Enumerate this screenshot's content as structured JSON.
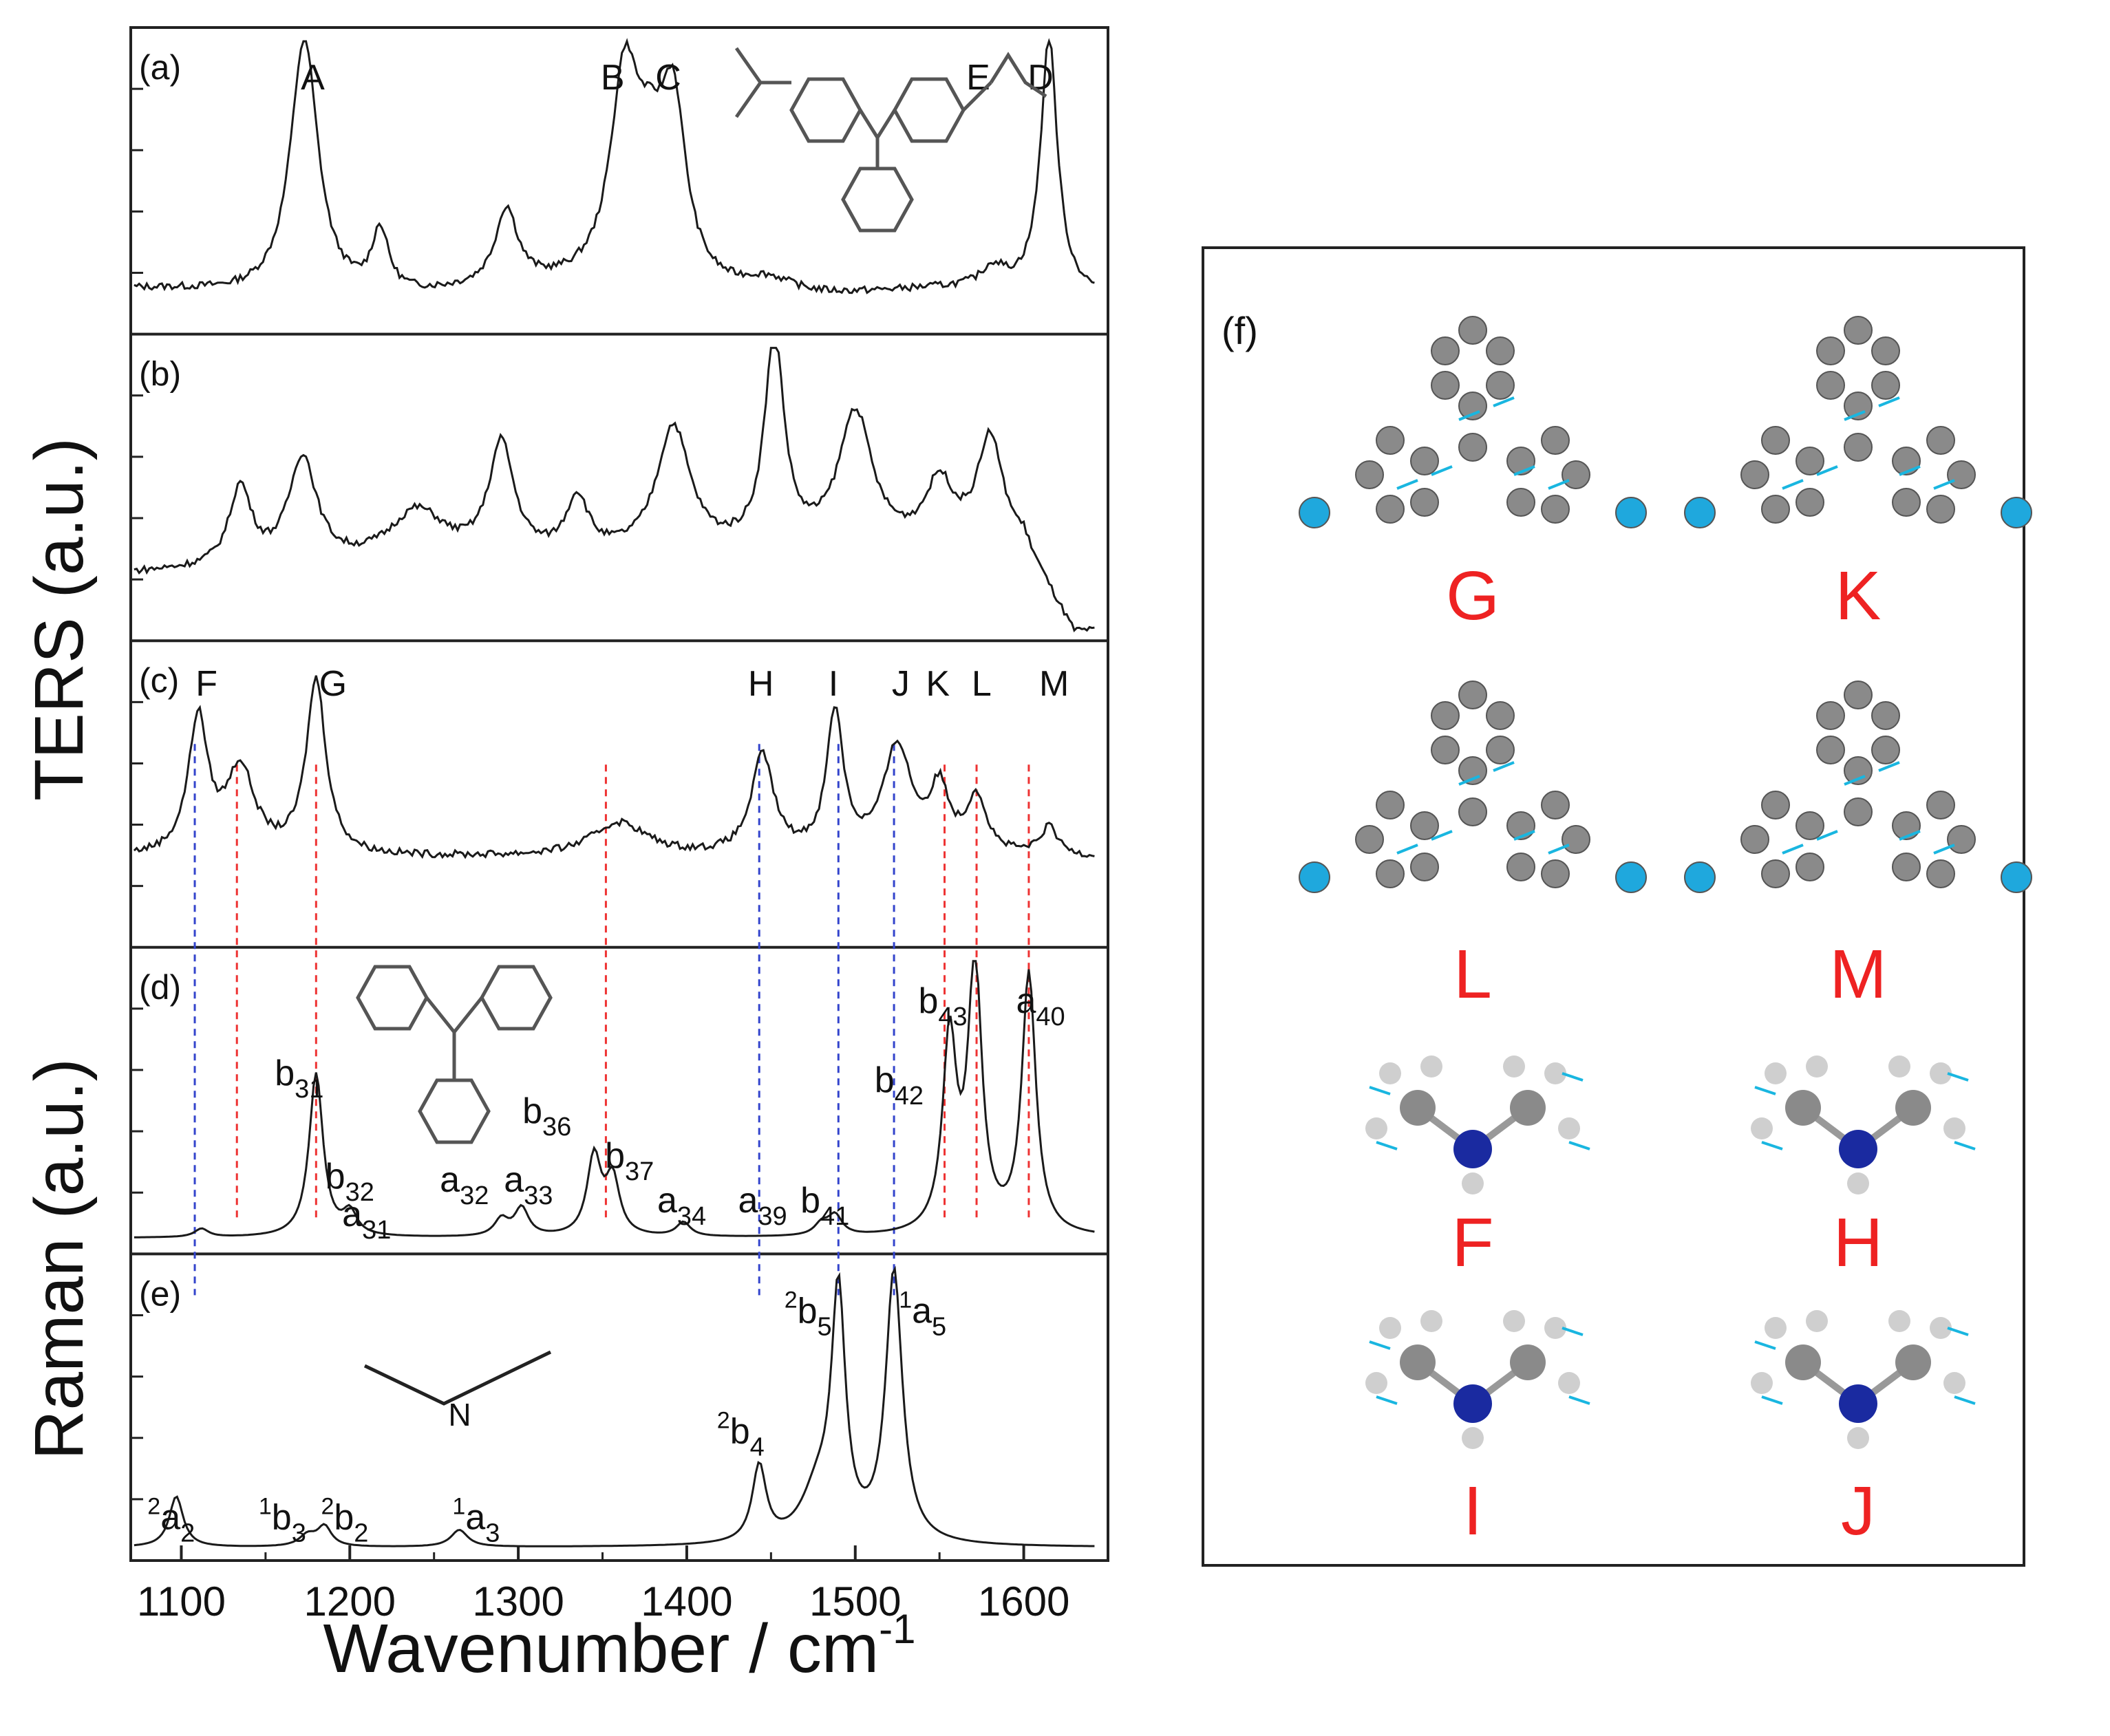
{
  "chart_data": {
    "type": "line",
    "x_label": "Wavenumber / cm",
    "x_label_superscript": "-1",
    "y_label_top": "TERS (a.u.)",
    "y_label_bottom": "Raman (a.u.)",
    "x_range": [
      1070,
      1650
    ],
    "x_ticks": [
      "1100",
      "1200",
      "1300",
      "1400",
      "1500",
      "1600"
    ],
    "panels": [
      {
        "id": "a",
        "label": "(a)",
        "baseline": 0.1,
        "peaks": [
          [
            1173,
            0.92,
            10
          ],
          [
            1218,
            0.22,
            6
          ],
          [
            1293,
            0.27,
            8
          ],
          [
            1363,
            0.68,
            10
          ],
          [
            1378,
            0.35,
            12
          ],
          [
            1392,
            0.58,
            9
          ],
          [
            1448,
            0.06,
            20
          ],
          [
            1582,
            0.07,
            8
          ],
          [
            1615,
            0.9,
            6
          ]
        ],
        "annotations": [
          {
            "text": "A",
            "x": 1178
          },
          {
            "text": "B",
            "x": 1356
          },
          {
            "text": "C",
            "x": 1389
          },
          {
            "text": "D",
            "x": 1610
          },
          {
            "text": "E",
            "x": 1573
          }
        ]
      },
      {
        "id": "b",
        "label": "(b)",
        "baseline": 0.2,
        "peaks": [
          [
            1135,
            0.28,
            8
          ],
          [
            1172,
            0.38,
            10
          ],
          [
            1240,
            0.18,
            20
          ],
          [
            1290,
            0.4,
            9
          ],
          [
            1335,
            0.2,
            8
          ],
          [
            1392,
            0.45,
            12
          ],
          [
            1452,
            0.75,
            7
          ],
          [
            1500,
            0.48,
            12
          ],
          [
            1550,
            0.22,
            10
          ],
          [
            1580,
            0.38,
            9
          ]
        ],
        "annotations": []
      },
      {
        "id": "c",
        "label": "(c)",
        "baseline": 0.28,
        "peaks": [
          [
            1110,
            0.48,
            7
          ],
          [
            1135,
            0.3,
            10
          ],
          [
            1180,
            0.62,
            7
          ],
          [
            1360,
            0.12,
            20
          ],
          [
            1445,
            0.35,
            8
          ],
          [
            1488,
            0.5,
            6
          ],
          [
            1525,
            0.38,
            10
          ],
          [
            1550,
            0.22,
            7
          ],
          [
            1572,
            0.2,
            7
          ],
          [
            1615,
            0.1,
            6
          ]
        ],
        "annotations": [
          {
            "text": "F",
            "x": 1115
          },
          {
            "text": "G",
            "x": 1190
          },
          {
            "text": "H",
            "x": 1444
          },
          {
            "text": "I",
            "x": 1487
          },
          {
            "text": "J",
            "x": 1527
          },
          {
            "text": "K",
            "x": 1549
          },
          {
            "text": "L",
            "x": 1575
          },
          {
            "text": "M",
            "x": 1618
          }
        ]
      },
      {
        "id": "d",
        "label": "(d)",
        "baseline": 0.02,
        "peaks": [
          [
            1112,
            0.03,
            5
          ],
          [
            1180,
            0.58,
            5
          ],
          [
            1200,
            0.08,
            5
          ],
          [
            1290,
            0.06,
            5
          ],
          [
            1302,
            0.1,
            5
          ],
          [
            1345,
            0.28,
            5
          ],
          [
            1356,
            0.2,
            5
          ],
          [
            1398,
            0.05,
            5
          ],
          [
            1480,
            0.04,
            5
          ],
          [
            1488,
            0.07,
            5
          ],
          [
            1556,
            0.68,
            5
          ],
          [
            1571,
            0.95,
            5
          ],
          [
            1603,
            0.92,
            5
          ]
        ],
        "annotations": [
          {
            "text": "b",
            "sub": "31",
            "x": 1170
          },
          {
            "text": "b",
            "sub": "32",
            "x": 1200
          },
          {
            "text": "a",
            "sub": "31",
            "x": 1210
          },
          {
            "text": "a",
            "sub": "32",
            "x": 1268
          },
          {
            "text": "a",
            "sub": "33",
            "x": 1306
          },
          {
            "text": "b",
            "sub": "36",
            "x": 1317
          },
          {
            "text": "b",
            "sub": "37",
            "x": 1366
          },
          {
            "text": "a",
            "sub": "34",
            "x": 1397
          },
          {
            "text": "a",
            "sub": "39",
            "x": 1445
          },
          {
            "text": "b",
            "sub": "41",
            "x": 1482
          },
          {
            "text": "b",
            "sub": "42",
            "x": 1526
          },
          {
            "text": "b",
            "sub": "43",
            "x": 1552
          },
          {
            "text": "a",
            "sub": "40",
            "x": 1610
          }
        ]
      },
      {
        "id": "e",
        "label": "(e)",
        "baseline": 0.01,
        "peaks": [
          [
            1097,
            0.18,
            5
          ],
          [
            1175,
            0.04,
            6
          ],
          [
            1185,
            0.07,
            5
          ],
          [
            1265,
            0.06,
            6
          ],
          [
            1443,
            0.27,
            5
          ],
          [
            1478,
            0.18,
            12
          ],
          [
            1490,
            0.85,
            5
          ],
          [
            1523,
            0.96,
            6
          ]
        ],
        "annotations": [
          {
            "sup": "2",
            "text": "a",
            "sub": "2",
            "x": 1094
          },
          {
            "sup": "1",
            "text": "b",
            "sub": "3",
            "x": 1160
          },
          {
            "sup": "2",
            "text": "b",
            "sub": "2",
            "x": 1197
          },
          {
            "sup": "1",
            "text": "a",
            "sub": "3",
            "x": 1275
          },
          {
            "sup": "2",
            "text": "b",
            "sub": "4",
            "x": 1432
          },
          {
            "sup": "2",
            "text": "b",
            "sub": "5",
            "x": 1472
          },
          {
            "sup": "1",
            "text": "a",
            "sub": "5",
            "x": 1540
          }
        ]
      }
    ],
    "blue_dashed_lines_x": [
      1108,
      1443,
      1490,
      1523
    ],
    "red_dashed_lines_x": [
      1133,
      1180,
      1352,
      1553,
      1572,
      1603
    ],
    "mode_panel": {
      "label": "(f)",
      "modes": [
        "G",
        "K",
        "L",
        "M",
        "F",
        "H",
        "I",
        "J"
      ]
    },
    "molecule_label_N": "N"
  }
}
